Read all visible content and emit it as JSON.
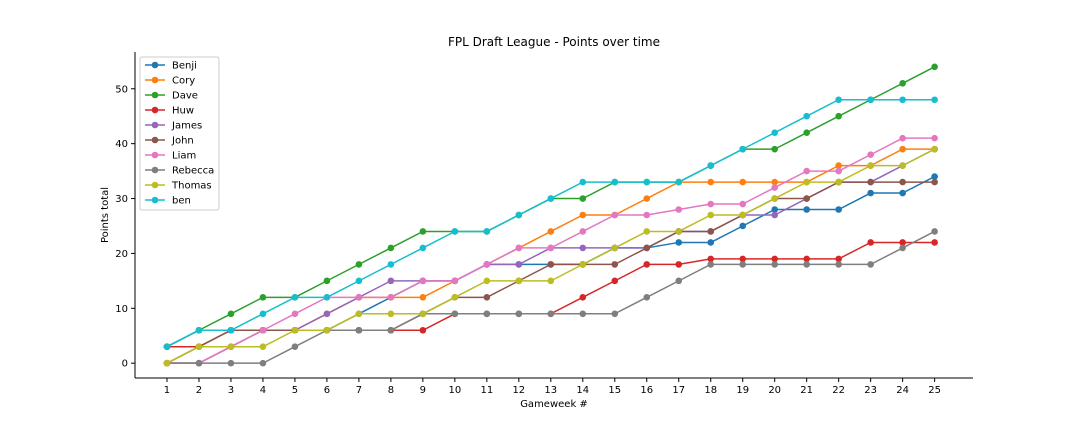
{
  "chart_data": {
    "type": "line",
    "title": "FPL Draft League - Points over time",
    "xlabel": "Gameweek #",
    "ylabel": "Points total",
    "x": [
      1,
      2,
      3,
      4,
      5,
      6,
      7,
      8,
      9,
      10,
      11,
      12,
      13,
      14,
      15,
      16,
      17,
      18,
      19,
      20,
      21,
      22,
      23,
      24,
      25
    ],
    "xlim": [
      0,
      26.2
    ],
    "ylim": [
      -2.7,
      56.7
    ],
    "yticks": [
      0,
      10,
      20,
      30,
      40,
      50
    ],
    "grid": false,
    "legend_position": "top-left",
    "series": [
      {
        "name": "Benji",
        "color": "#1f77b4",
        "values": [
          3,
          6,
          6,
          6,
          6,
          6,
          9,
          12,
          15,
          15,
          18,
          18,
          18,
          18,
          21,
          21,
          22,
          22,
          25,
          28,
          28,
          28,
          31,
          31,
          34
        ]
      },
      {
        "name": "Cory",
        "color": "#ff7f0e",
        "values": [
          0,
          0,
          3,
          6,
          6,
          9,
          12,
          12,
          12,
          15,
          18,
          21,
          24,
          27,
          27,
          30,
          33,
          33,
          33,
          33,
          33,
          36,
          36,
          39,
          39
        ]
      },
      {
        "name": "Dave",
        "color": "#2ca02c",
        "values": [
          3,
          6,
          9,
          12,
          12,
          15,
          18,
          21,
          24,
          24,
          24,
          27,
          30,
          30,
          33,
          33,
          33,
          36,
          39,
          39,
          42,
          45,
          48,
          51,
          54
        ]
      },
      {
        "name": "Huw",
        "color": "#d62728",
        "values": [
          3,
          3,
          6,
          6,
          6,
          6,
          6,
          6,
          6,
          9,
          9,
          9,
          9,
          12,
          15,
          18,
          18,
          19,
          19,
          19,
          19,
          19,
          22,
          22,
          22
        ]
      },
      {
        "name": "James",
        "color": "#9467bd",
        "values": [
          0,
          0,
          3,
          6,
          6,
          9,
          12,
          15,
          15,
          15,
          18,
          18,
          21,
          21,
          21,
          21,
          24,
          24,
          27,
          27,
          30,
          33,
          33,
          36,
          39
        ]
      },
      {
        "name": "John",
        "color": "#8c564b",
        "values": [
          0,
          3,
          6,
          6,
          6,
          6,
          6,
          6,
          9,
          12,
          12,
          15,
          18,
          18,
          18,
          21,
          24,
          24,
          27,
          30,
          30,
          33,
          33,
          33,
          33
        ]
      },
      {
        "name": "Liam",
        "color": "#e377c2",
        "values": [
          0,
          0,
          3,
          6,
          9,
          12,
          12,
          12,
          15,
          15,
          18,
          21,
          21,
          24,
          27,
          27,
          28,
          29,
          29,
          32,
          35,
          35,
          38,
          41,
          41
        ]
      },
      {
        "name": "Rebecca",
        "color": "#7f7f7f",
        "values": [
          0,
          0,
          0,
          0,
          3,
          6,
          6,
          6,
          9,
          9,
          9,
          9,
          9,
          9,
          9,
          12,
          15,
          18,
          18,
          18,
          18,
          18,
          18,
          21,
          24
        ]
      },
      {
        "name": "Thomas",
        "color": "#bcbd22",
        "values": [
          0,
          3,
          3,
          3,
          6,
          6,
          9,
          9,
          9,
          12,
          15,
          15,
          15,
          18,
          21,
          24,
          24,
          27,
          27,
          30,
          33,
          33,
          36,
          36,
          39
        ]
      },
      {
        "name": "ben",
        "color": "#17becf",
        "values": [
          3,
          6,
          6,
          9,
          12,
          12,
          15,
          18,
          21,
          24,
          24,
          27,
          30,
          33,
          33,
          33,
          33,
          36,
          39,
          42,
          45,
          48,
          48,
          48,
          48
        ]
      }
    ]
  }
}
